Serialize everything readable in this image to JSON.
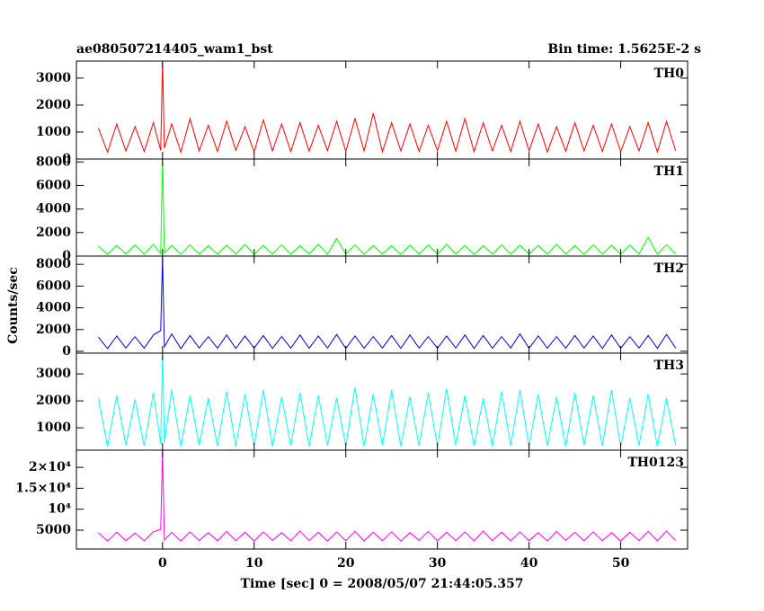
{
  "title": "ae080507214405_wam1_bst",
  "annotation": "Bin time: 1.5625E-2 s",
  "x_label": "Time [sec] 0 = 2008/05/07 21:44:05.357",
  "y_label": "Counts/sec",
  "chart_data": [
    {
      "type": "line",
      "x": [
        -7,
        -6,
        -5,
        -4,
        -3,
        -2,
        -1,
        -0.2,
        0,
        0.2,
        1,
        2,
        3,
        4,
        5,
        6,
        7,
        8,
        9,
        10,
        11,
        12,
        13,
        14,
        15,
        16,
        17,
        18,
        19,
        20,
        21,
        22,
        23,
        24,
        25,
        26,
        27,
        28,
        29,
        30,
        31,
        32,
        33,
        34,
        35,
        36,
        37,
        38,
        39,
        40,
        41,
        42,
        43,
        44,
        45,
        46,
        47,
        48,
        49,
        50,
        51,
        52,
        53,
        54,
        55,
        56
      ],
      "xlim": [
        -9.4,
        57.3
      ],
      "xticks": [
        0,
        10,
        20,
        30,
        40,
        50
      ],
      "ylim": [
        0,
        3630
      ],
      "yticks": [
        0,
        1000,
        2000,
        3000
      ],
      "series": [
        {
          "name": "TH0",
          "color": "#ff0000",
          "values": [
            1150,
            250,
            1300,
            300,
            1200,
            280,
            1350,
            320,
            3600,
            400,
            1300,
            250,
            1500,
            300,
            1250,
            280,
            1400,
            320,
            1200,
            260,
            1450,
            300,
            1300,
            270,
            1350,
            290,
            1250,
            310,
            1400,
            280,
            1500,
            300,
            1700,
            260,
            1350,
            300,
            1300,
            280,
            1250,
            310,
            1400,
            290,
            1500,
            270,
            1350,
            300,
            1250,
            280,
            1400,
            300,
            1300,
            260,
            1200,
            290,
            1350,
            300,
            1250,
            280,
            1300,
            270,
            1200,
            300,
            1350,
            260,
            1400,
            300
          ]
        }
      ]
    },
    {
      "type": "line",
      "x": [
        -7,
        -6,
        -5,
        -4,
        -3,
        -2,
        -1,
        -0.2,
        0,
        0.2,
        1,
        2,
        3,
        4,
        5,
        6,
        7,
        8,
        9,
        10,
        11,
        12,
        13,
        14,
        15,
        16,
        17,
        18,
        19,
        20,
        21,
        22,
        23,
        24,
        25,
        26,
        27,
        28,
        29,
        30,
        31,
        32,
        33,
        34,
        35,
        36,
        37,
        38,
        39,
        40,
        41,
        42,
        43,
        44,
        45,
        46,
        47,
        48,
        49,
        50,
        51,
        52,
        53,
        54,
        55,
        56
      ],
      "xlim": [
        -9.4,
        57.3
      ],
      "xticks": [
        0,
        10,
        20,
        30,
        40,
        50
      ],
      "ylim": [
        0,
        8250
      ],
      "yticks": [
        0,
        2000,
        4000,
        6000,
        8000
      ],
      "series": [
        {
          "name": "TH1",
          "color": "#00ff00",
          "values": [
            850,
            150,
            900,
            180,
            950,
            160,
            1000,
            200,
            8200,
            250,
            900,
            150,
            950,
            170,
            880,
            160,
            920,
            180,
            1000,
            150,
            900,
            170,
            950,
            160,
            880,
            180,
            1000,
            150,
            1500,
            170,
            950,
            160,
            900,
            180,
            880,
            150,
            920,
            170,
            950,
            160,
            1000,
            180,
            900,
            150,
            880,
            170,
            950,
            160,
            920,
            180,
            900,
            150,
            1000,
            170,
            880,
            160,
            950,
            180,
            900,
            150,
            920,
            170,
            1600,
            160,
            950,
            180
          ]
        }
      ]
    },
    {
      "type": "line",
      "x": [
        -7,
        -6,
        -5,
        -4,
        -3,
        -2,
        -1,
        -0.2,
        0,
        0.2,
        1,
        2,
        3,
        4,
        5,
        6,
        7,
        8,
        9,
        10,
        11,
        12,
        13,
        14,
        15,
        16,
        17,
        18,
        19,
        20,
        21,
        22,
        23,
        24,
        25,
        26,
        27,
        28,
        29,
        30,
        31,
        32,
        33,
        34,
        35,
        36,
        37,
        38,
        39,
        40,
        41,
        42,
        43,
        44,
        45,
        46,
        47,
        48,
        49,
        50,
        51,
        52,
        53,
        54,
        55,
        56
      ],
      "xlim": [
        -9.4,
        57.3
      ],
      "xticks": [
        0,
        10,
        20,
        30,
        40,
        50
      ],
      "ylim": [
        -170,
        8760
      ],
      "yticks": [
        0,
        2000,
        4000,
        6000,
        8000
      ],
      "series": [
        {
          "name": "TH2",
          "color": "#0000dd",
          "values": [
            1300,
            250,
            1400,
            300,
            1350,
            280,
            1500,
            1900,
            8700,
            400,
            1600,
            250,
            1450,
            300,
            1350,
            280,
            1500,
            260,
            1400,
            300,
            1450,
            270,
            1350,
            290,
            1500,
            280,
            1400,
            300,
            1550,
            260,
            1400,
            280,
            1350,
            300,
            1450,
            270,
            1500,
            290,
            1350,
            280,
            1400,
            300,
            1500,
            260,
            1450,
            280,
            1350,
            300,
            1600,
            270,
            1400,
            290,
            1350,
            280,
            1450,
            300,
            1400,
            260,
            1500,
            280,
            1350,
            300,
            1450,
            270,
            1550,
            290
          ]
        }
      ]
    },
    {
      "type": "line",
      "x": [
        -7,
        -6,
        -5,
        -4,
        -3,
        -2,
        -1,
        -0.2,
        0,
        0.2,
        1,
        2,
        3,
        4,
        5,
        6,
        7,
        8,
        9,
        10,
        11,
        12,
        13,
        14,
        15,
        16,
        17,
        18,
        19,
        20,
        21,
        22,
        23,
        24,
        25,
        26,
        27,
        28,
        29,
        30,
        31,
        32,
        33,
        34,
        35,
        36,
        37,
        38,
        39,
        40,
        41,
        42,
        43,
        44,
        45,
        46,
        47,
        48,
        49,
        50,
        51,
        52,
        53,
        54,
        55,
        56
      ],
      "xlim": [
        -9.4,
        57.3
      ],
      "xticks": [
        0,
        10,
        20,
        30,
        40,
        50
      ],
      "ylim": [
        170,
        3770
      ],
      "yticks": [
        1000,
        2000,
        3000
      ],
      "series": [
        {
          "name": "TH3",
          "color": "#00ffff",
          "values": [
            2100,
            300,
            2200,
            350,
            2050,
            320,
            2300,
            400,
            3700,
            450,
            2400,
            300,
            2200,
            350,
            2100,
            320,
            2350,
            300,
            2250,
            340,
            2400,
            310,
            2150,
            330,
            2300,
            300,
            2200,
            350,
            2100,
            320,
            2500,
            300,
            2250,
            340,
            2400,
            310,
            2150,
            330,
            2300,
            300,
            2450,
            350,
            2200,
            320,
            2100,
            300,
            2350,
            340,
            2400,
            310,
            2250,
            330,
            2150,
            300,
            2300,
            350,
            2200,
            320,
            2400,
            300,
            2100,
            340,
            2250,
            310,
            2100,
            330
          ]
        }
      ]
    },
    {
      "type": "line",
      "x": [
        -7,
        -6,
        -5,
        -4,
        -3,
        -2,
        -1,
        -0.2,
        0,
        0.2,
        1,
        2,
        3,
        4,
        5,
        6,
        7,
        8,
        9,
        10,
        11,
        12,
        13,
        14,
        15,
        16,
        17,
        18,
        19,
        20,
        21,
        22,
        23,
        24,
        25,
        26,
        27,
        28,
        29,
        30,
        31,
        32,
        33,
        34,
        35,
        36,
        37,
        38,
        39,
        40,
        41,
        42,
        43,
        44,
        45,
        46,
        47,
        48,
        49,
        50,
        51,
        52,
        53,
        54,
        55,
        56
      ],
      "xlim": [
        -9.4,
        57.3
      ],
      "xticks": [
        0,
        10,
        20,
        30,
        40,
        50
      ],
      "ylim": [
        500,
        24100
      ],
      "yticks": [
        {
          "value": 5000,
          "label": "5000"
        },
        {
          "value": 10000,
          "label": "10⁴"
        },
        {
          "value": 15000,
          "label": "1.5×10⁴"
        },
        {
          "value": 20000,
          "label": "2×10⁴"
        }
      ],
      "series": [
        {
          "name": "TH0123",
          "color": "#ff00ff",
          "values": [
            4400,
            2400,
            4500,
            2500,
            4300,
            2450,
            4600,
            5200,
            24000,
            2600,
            4500,
            2400,
            4600,
            2500,
            4400,
            2450,
            4700,
            2500,
            4500,
            2400,
            4600,
            2550,
            4400,
            2450,
            4800,
            2500,
            4500,
            2400,
            4600,
            2500,
            4700,
            2450,
            4500,
            2500,
            4600,
            2400,
            4400,
            2550,
            4700,
            2450,
            4500,
            2500,
            4600,
            2400,
            4800,
            2500,
            4500,
            2450,
            4600,
            2500,
            4400,
            2400,
            4700,
            2550,
            4500,
            2450,
            4600,
            2500,
            4400,
            2400,
            4500,
            2500,
            4700,
            2450,
            4800,
            2500
          ]
        }
      ]
    }
  ]
}
